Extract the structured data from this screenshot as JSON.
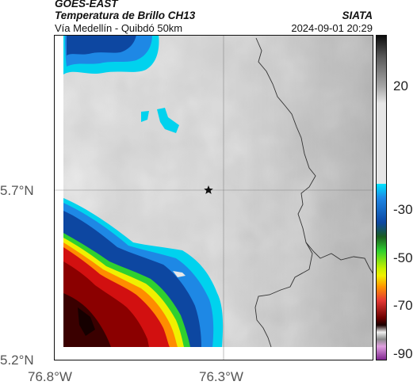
{
  "header": {
    "source": "GOES-EAST",
    "product": "Temperatura de Brillo CH13",
    "route": "Vía Medellín - Quibdó 50km",
    "org": "SIATA",
    "datetime": "2024-09-01 20:29"
  },
  "axes": {
    "y_ticks": [
      "5.7°N",
      "5.2°N"
    ],
    "x_ticks": [
      "76.8°W",
      "76.3°W"
    ]
  },
  "colorbar": {
    "ticks": [
      "20",
      "-30",
      "-50",
      "-70",
      "-90"
    ]
  },
  "marker": {
    "icon": "star-icon"
  },
  "colors": {
    "cold_blue": "#1565c0",
    "cyan": "#00d2ee",
    "green": "#2fd02f",
    "yellow": "#f0f000",
    "red": "#d21010",
    "darkred": "#5a0000"
  }
}
